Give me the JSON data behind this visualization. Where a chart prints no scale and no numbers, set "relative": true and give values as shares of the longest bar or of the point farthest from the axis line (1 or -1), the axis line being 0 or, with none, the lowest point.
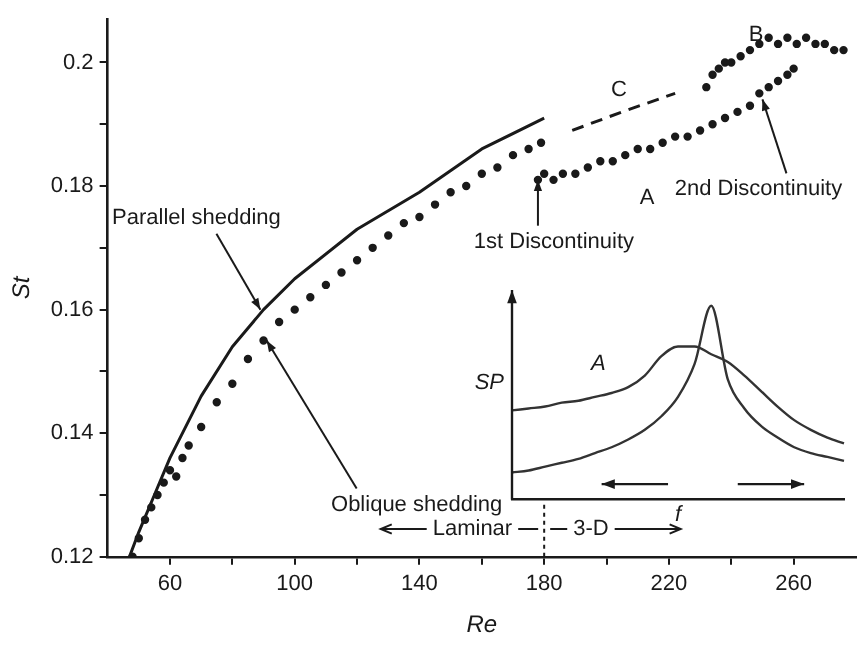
{
  "chart_data": [
    {
      "type": "scatter",
      "xlabel": "Re",
      "ylabel": "St",
      "xlim": [
        40,
        280
      ],
      "ylim": [
        0.12,
        0.207
      ],
      "xticks": [
        60,
        {
          "value": 80,
          "label": null
        },
        100,
        {
          "value": 120,
          "label": null
        },
        140,
        {
          "value": 160,
          "label": null
        },
        180,
        {
          "value": 200,
          "label": null
        },
        220,
        {
          "value": 240,
          "label": null
        },
        260
      ],
      "yticks": [
        0.12,
        {
          "value": 0.13,
          "label": null
        },
        0.14,
        {
          "value": 0.15,
          "label": null
        },
        0.16,
        {
          "value": 0.17,
          "label": null
        },
        0.18,
        {
          "value": 0.19,
          "label": null
        },
        0.2
      ],
      "grid": false,
      "legend": false,
      "marker": "circle",
      "series": [
        {
          "name": "Parallel shedding",
          "type": "line",
          "line_style": "solid",
          "marker": "none",
          "color": "#1a1a1a",
          "x": [
            47,
            50,
            55,
            60,
            70,
            80,
            90,
            100,
            120,
            140,
            160,
            180
          ],
          "values": [
            0.12,
            0.124,
            0.13,
            0.136,
            0.146,
            0.154,
            0.16,
            0.165,
            0.173,
            0.179,
            0.186,
            0.191
          ]
        },
        {
          "name": "Oblique shedding",
          "type": "scatter",
          "color": "#1a1a1a",
          "x": [
            48,
            50,
            52,
            54,
            56,
            58,
            60,
            62,
            64,
            66,
            70,
            75,
            80,
            85,
            90,
            95,
            100,
            105,
            110,
            115,
            120,
            125,
            130,
            135,
            140,
            145,
            150,
            155,
            160,
            165,
            170,
            175,
            179
          ],
          "values": [
            0.12,
            0.123,
            0.126,
            0.128,
            0.13,
            0.132,
            0.134,
            0.133,
            0.136,
            0.138,
            0.141,
            0.145,
            0.148,
            0.152,
            0.155,
            0.158,
            0.16,
            0.162,
            0.164,
            0.166,
            0.168,
            0.17,
            0.172,
            0.174,
            0.175,
            0.177,
            0.179,
            0.18,
            0.182,
            0.183,
            0.185,
            0.186,
            0.187
          ]
        },
        {
          "name": "A",
          "type": "scatter",
          "color": "#1a1a1a",
          "x": [
            178,
            180,
            183,
            186,
            190,
            194,
            198,
            202,
            206,
            210,
            214,
            218,
            222,
            226,
            230,
            234,
            238,
            242,
            246,
            249,
            252,
            255,
            258,
            260
          ],
          "values": [
            0.181,
            0.182,
            0.181,
            0.182,
            0.182,
            0.183,
            0.184,
            0.184,
            0.185,
            0.186,
            0.186,
            0.187,
            0.188,
            0.188,
            0.189,
            0.19,
            0.191,
            0.192,
            0.193,
            0.195,
            0.196,
            0.197,
            0.198,
            0.199
          ]
        },
        {
          "name": "B",
          "type": "scatter",
          "color": "#1a1a1a",
          "x": [
            232,
            234,
            236,
            238,
            240,
            243,
            246,
            249,
            252,
            255,
            258,
            261,
            264,
            267,
            270,
            273,
            276
          ],
          "values": [
            0.196,
            0.198,
            0.199,
            0.2,
            0.2,
            0.201,
            0.202,
            0.203,
            0.204,
            0.203,
            0.204,
            0.203,
            0.204,
            0.203,
            0.203,
            0.202,
            0.202
          ]
        },
        {
          "name": "C",
          "type": "line",
          "line_style": "dashed",
          "marker": "none",
          "color": "#1a1a1a",
          "x": [
            189,
            205,
            222
          ],
          "values": [
            0.189,
            0.192,
            0.195
          ]
        }
      ],
      "annotations": [
        {
          "text": "1st Discontinuity",
          "x": 178,
          "y": 0.182
        },
        {
          "text": "2nd Discontinuity",
          "x": 250,
          "y": 0.195
        },
        "Laminar",
        "3-D"
      ],
      "ref_lines": [
        {
          "axis": "x",
          "value": 180,
          "line_style": "dotted",
          "color": "#1a1a1a"
        }
      ]
    },
    {
      "type": "line",
      "relative": true,
      "xlabel": "f",
      "ylabel": "SP",
      "tick_labels": false,
      "grid": false,
      "legend": false,
      "marker": "none",
      "categories": [
        null,
        null,
        null,
        null,
        null,
        null,
        null,
        null,
        null,
        null,
        null,
        null,
        null,
        null,
        null,
        null,
        null,
        null,
        null,
        null,
        null
      ],
      "series": [
        {
          "name": "A",
          "color": "#333333",
          "values": [
            0.46,
            0.47,
            0.48,
            0.5,
            0.51,
            0.53,
            0.55,
            0.58,
            0.64,
            0.74,
            0.79,
            0.79,
            0.75,
            0.71,
            0.64,
            0.56,
            0.48,
            0.41,
            0.36,
            0.32,
            0.29
          ]
        },
        {
          "color": "#333333",
          "values": [
            0.14,
            0.15,
            0.17,
            0.19,
            0.21,
            0.24,
            0.27,
            0.31,
            0.36,
            0.43,
            0.53,
            0.7,
            1.0,
            0.62,
            0.47,
            0.38,
            0.32,
            0.27,
            0.24,
            0.22,
            0.2
          ]
        }
      ]
    }
  ]
}
